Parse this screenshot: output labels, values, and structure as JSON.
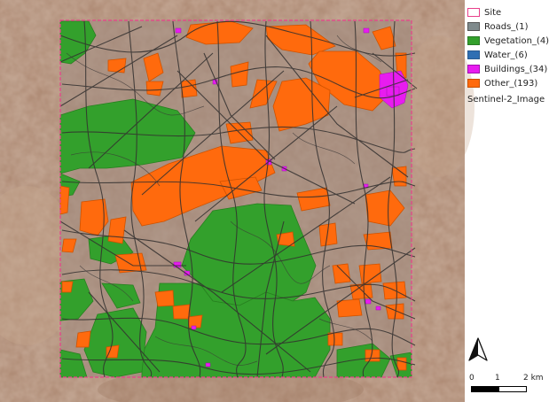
{
  "legend": {
    "items": [
      {
        "label": "Site",
        "fill": "#ffffff",
        "stroke": "#e8408a"
      },
      {
        "label": "Roads_(1)",
        "fill": "#7f8a8c",
        "stroke": "#555555"
      },
      {
        "label": "Vegetation_(4)",
        "fill": "#33a02c",
        "stroke": "#2a7a25"
      },
      {
        "label": "Water_(6)",
        "fill": "#2f6fb3",
        "stroke": "#2a5a90"
      },
      {
        "label": "Buildings_(34)",
        "fill": "#e81cf0",
        "stroke": "#a010b0"
      },
      {
        "label": "Other_(193)",
        "fill": "#ff6a0d",
        "stroke": "#c84f00"
      }
    ],
    "raster_label": "Sentinel-2_Image"
  },
  "north_arrow": {
    "icon": "north-arrow-icon"
  },
  "scalebar": {
    "labels": [
      "0",
      "1",
      "2 km"
    ]
  },
  "colors": {
    "site_boundary": "#e8408a",
    "roads": "#3a3a3a",
    "vegetation": "#33a02c",
    "buildings": "#e81cf0",
    "other": "#ff6a0d",
    "terrain": "#a9856a"
  }
}
